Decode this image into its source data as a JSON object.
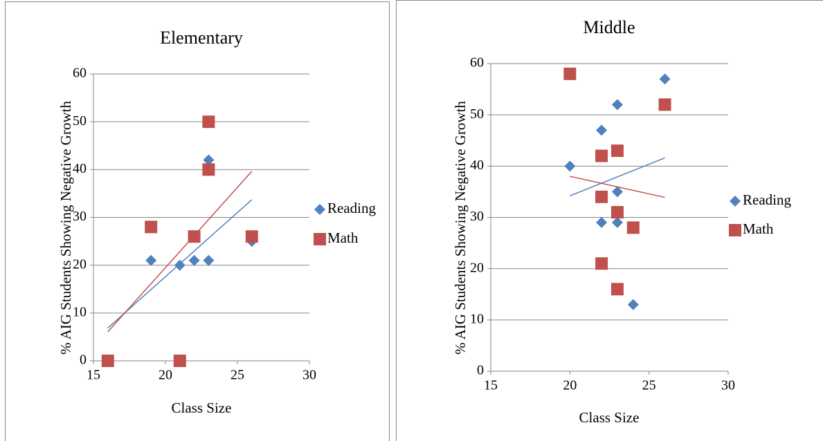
{
  "chart_data": [
    {
      "type": "scatter",
      "title": "Elementary",
      "x_label": "Class Size",
      "y_label": "% AIG Students Showing Negative Growth",
      "xlim": [
        15,
        30
      ],
      "xticks": [
        15,
        20,
        25,
        30
      ],
      "ylim": [
        0,
        60
      ],
      "yticks": [
        0,
        10,
        20,
        30,
        40,
        50,
        60
      ],
      "grid": true,
      "trendline": true,
      "series": [
        {
          "name": "Reading",
          "color": "#4f81bd",
          "marker": "diamond",
          "x": [
            16,
            19,
            21,
            22,
            23,
            23,
            26
          ],
          "values": [
            0,
            21,
            20,
            21,
            21,
            42,
            25
          ]
        },
        {
          "name": "Math",
          "color": "#c0504d",
          "marker": "square",
          "x": [
            16,
            19,
            21,
            22,
            23,
            23,
            26
          ],
          "values": [
            0,
            28,
            0,
            26,
            50,
            40,
            26
          ]
        }
      ]
    },
    {
      "type": "scatter",
      "title": "Middle",
      "x_label": "Class Size",
      "y_label": "% AIG Students Showing Negative Growth",
      "xlim": [
        15,
        30
      ],
      "xticks": [
        15,
        20,
        25,
        30
      ],
      "ylim": [
        0,
        60
      ],
      "yticks": [
        0,
        10,
        20,
        30,
        40,
        50,
        60
      ],
      "grid": true,
      "trendline": true,
      "series": [
        {
          "name": "Reading",
          "color": "#4f81bd",
          "marker": "diamond",
          "x": [
            20,
            22,
            23,
            26,
            23,
            22,
            23,
            24
          ],
          "values": [
            40,
            47,
            52,
            57,
            35,
            29,
            29,
            13
          ]
        },
        {
          "name": "Math",
          "color": "#c0504d",
          "marker": "square",
          "x": [
            20,
            26,
            22,
            23,
            22,
            23,
            24,
            22,
            23
          ],
          "values": [
            58,
            52,
            42,
            43,
            34,
            31,
            28,
            21,
            16
          ]
        }
      ]
    }
  ]
}
